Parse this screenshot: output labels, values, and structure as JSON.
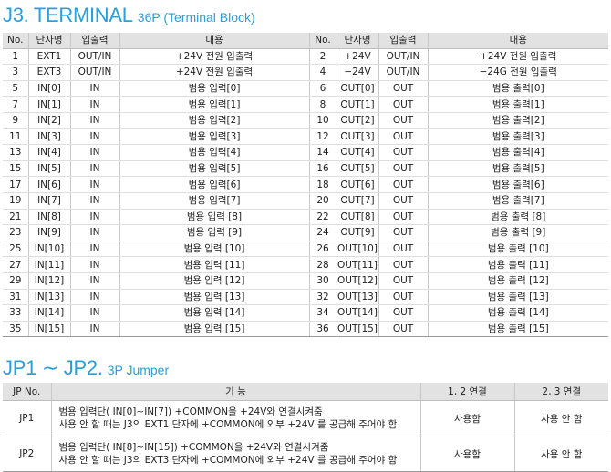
{
  "terminal_title": {
    "main": "J3. TERMINAL",
    "sub": "36P (Terminal Block)"
  },
  "terminal_headers": [
    "No.",
    "단자명",
    "입출력",
    "내용",
    "No.",
    "단자명",
    "입출력",
    "내용"
  ],
  "terminal_rows": [
    [
      "1",
      "EXT1",
      "OUT/IN",
      "+24V 전원 입출력",
      "2",
      "+24V",
      "OUT/IN",
      "+24V 전원 입출력"
    ],
    [
      "3",
      "EXT3",
      "OUT/IN",
      "+24V 전원 입출력",
      "4",
      "−24V",
      "OUT/IN",
      "−24G 전원 입출력"
    ],
    [
      "5",
      "IN[0]",
      "IN",
      "범용 입력[0]",
      "6",
      "OUT[0]",
      "OUT",
      "범용 출력[0]"
    ],
    [
      "7",
      "IN[1]",
      "IN",
      "범용 입력[1]",
      "8",
      "OUT[1]",
      "OUT",
      "범용 출력[1]"
    ],
    [
      "9",
      "IN[2]",
      "IN",
      "범용 입력[2]",
      "10",
      "OUT[2]",
      "OUT",
      "범용 출력[2]"
    ],
    [
      "11",
      "IN[3]",
      "IN",
      "범용 입력[3]",
      "12",
      "OUT[3]",
      "OUT",
      "범용 출력[3]"
    ],
    [
      "13",
      "IN[4]",
      "IN",
      "범용 입력[4]",
      "14",
      "OUT[4]",
      "OUT",
      "범용 출력[4]"
    ],
    [
      "15",
      "IN[5]",
      "IN",
      "범용 입력[5]",
      "16",
      "OUT[5]",
      "OUT",
      "범용 출력[5]"
    ],
    [
      "17",
      "IN[6]",
      "IN",
      "범용 입력[6]",
      "18",
      "OUT[6]",
      "OUT",
      "범용 출력[6]"
    ],
    [
      "19",
      "IN[7]",
      "IN",
      "범용 입력[7]",
      "20",
      "OUT[7]",
      "OUT",
      "범용 출력[7]"
    ],
    [
      "21",
      "IN[8]",
      "IN",
      "범용 입력 [8]",
      "22",
      "OUT[8]",
      "OUT",
      "범용 출력 [8]"
    ],
    [
      "23",
      "IN[9]",
      "IN",
      "범용 입력 [9]",
      "24",
      "OUT[9]",
      "OUT",
      "범용 출력 [9]"
    ],
    [
      "25",
      "IN[10]",
      "IN",
      "범용 입력 [10]",
      "26",
      "OUT[10]",
      "OUT",
      "범용 출력 [10]"
    ],
    [
      "27",
      "IN[11]",
      "IN",
      "범용 입력 [11]",
      "28",
      "OUT[11]",
      "OUT",
      "범용 출력 [11]"
    ],
    [
      "29",
      "IN[12]",
      "IN",
      "범용 입력 [12]",
      "30",
      "OUT[12]",
      "OUT",
      "범용 출력 [12]"
    ],
    [
      "31",
      "IN[13]",
      "IN",
      "범용 입력 [13]",
      "32",
      "OUT[13]",
      "OUT",
      "범용 출력 [13]"
    ],
    [
      "33",
      "IN[14]",
      "IN",
      "범용 입력 [14]",
      "34",
      "OUT[14]",
      "OUT",
      "범용 출력 [14]"
    ],
    [
      "35",
      "IN[15]",
      "IN",
      "범용 입력 [15]",
      "36",
      "OUT[15]",
      "OUT",
      "범용 출력 [15]"
    ]
  ],
  "jumper_title": {
    "main": "JP1 ∼ JP2.",
    "sub": "3P Jumper"
  },
  "jumper_headers": [
    "JP No.",
    "기     능",
    "1, 2 연결",
    "2, 3 연결"
  ],
  "jumper_rows": [
    {
      "no": "JP1",
      "lines": [
        "범용 입력단( IN[0]∼IN[7]) +COMMON을 +24V와 연결시켜줌",
        "사용 안 할 때는 J3의 EXT1 단자에 +COMMON에 외부 +24V 를 공급해 주어야 함"
      ],
      "c12": "사용함",
      "c23": "사용 안 함"
    },
    {
      "no": "JP2",
      "lines": [
        "범용 입력단( IN[8]∼IN[15]) +COMMON을 +24V와 연결시켜줌",
        "사용 안 할 때는 J3의 EXT3 단자에 +COMMON에 외부 +24V 를 공급해 주어야 함"
      ],
      "c12": "사용함",
      "c23": "사용 안 함"
    }
  ]
}
